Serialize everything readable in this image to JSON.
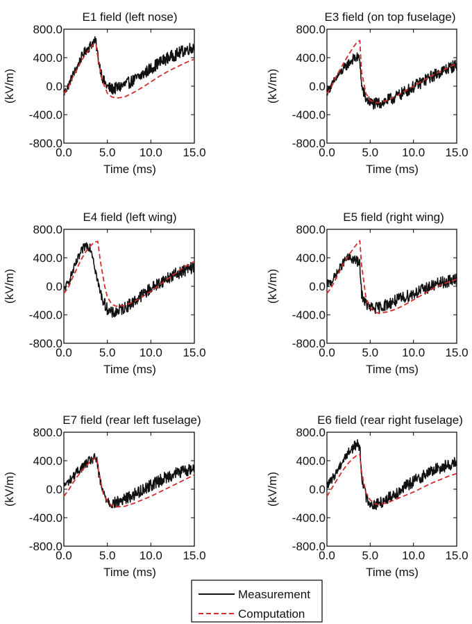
{
  "colors": {
    "measurement": "#111111",
    "computation": "#d42a2a",
    "axis": "#000000"
  },
  "legend": {
    "items": [
      "Measurement",
      "Computation"
    ],
    "position": "bottom-center"
  },
  "chart_data": [
    {
      "type": "line",
      "title": "E1 field (left nose)",
      "xlabel": "Time (ms)",
      "ylabel": "(kV/m)",
      "xlim": [
        0,
        15
      ],
      "ylim": [
        -800,
        800
      ],
      "xticks": [
        "0.0",
        "5.0",
        "10.0",
        "15.0"
      ],
      "yticks": [
        "800.0",
        "400.0",
        "0.0",
        "-400.0",
        "-800.0"
      ],
      "grid": false,
      "series": [
        {
          "name": "Measurement",
          "x": [
            0,
            0.5,
            1,
            1.5,
            2,
            2.5,
            3,
            3.5,
            3.7,
            4,
            4.5,
            5,
            5.5,
            6,
            7,
            8,
            9,
            10,
            11,
            12,
            13,
            14,
            15
          ],
          "y": [
            -100,
            0,
            150,
            260,
            400,
            500,
            560,
            640,
            600,
            350,
            90,
            -10,
            -40,
            -30,
            20,
            80,
            160,
            250,
            330,
            400,
            450,
            510,
            550
          ]
        },
        {
          "name": "Computation",
          "x": [
            0,
            0.5,
            1,
            1.5,
            2,
            2.5,
            3,
            3.5,
            3.7,
            4,
            4.5,
            5,
            5.5,
            6,
            7,
            8,
            9,
            10,
            11,
            12,
            13,
            14,
            15
          ],
          "y": [
            -100,
            -20,
            120,
            230,
            350,
            450,
            530,
            600,
            580,
            330,
            50,
            -100,
            -150,
            -170,
            -150,
            -90,
            -20,
            60,
            140,
            210,
            270,
            330,
            380
          ]
        }
      ]
    },
    {
      "type": "line",
      "title": "E3 field (on top fuselage)",
      "xlabel": "Time (ms)",
      "ylabel": "(kV/m)",
      "xlim": [
        0,
        15
      ],
      "ylim": [
        -800,
        800
      ],
      "xticks": [
        "0.0",
        "5.0",
        "10.0",
        "15.0"
      ],
      "yticks": [
        "800.0",
        "400.0",
        "0.0",
        "-400.0",
        "-800.0"
      ],
      "grid": false,
      "series": [
        {
          "name": "Measurement",
          "x": [
            0,
            0.5,
            1,
            1.5,
            2,
            2.5,
            3,
            3.5,
            3.8,
            4,
            4.5,
            5,
            5.5,
            6,
            7,
            8,
            9,
            10,
            11,
            12,
            13,
            14,
            15
          ],
          "y": [
            -80,
            0,
            100,
            180,
            250,
            320,
            380,
            400,
            380,
            0,
            -180,
            -230,
            -250,
            -240,
            -200,
            -150,
            -80,
            -10,
            60,
            130,
            190,
            250,
            300
          ]
        },
        {
          "name": "Computation",
          "x": [
            0,
            0.5,
            1,
            1.5,
            2,
            2.5,
            3,
            3.5,
            3.8,
            4,
            4.5,
            5,
            5.5,
            6,
            7,
            8,
            9,
            10,
            11,
            12,
            13,
            14,
            15
          ],
          "y": [
            -100,
            -20,
            120,
            230,
            340,
            440,
            540,
            620,
            640,
            200,
            -100,
            -200,
            -230,
            -230,
            -200,
            -140,
            -70,
            0,
            70,
            140,
            200,
            260,
            320
          ]
        }
      ]
    },
    {
      "type": "line",
      "title": "E4 field (left wing)",
      "xlabel": "Time (ms)",
      "ylabel": "(kV/m)",
      "xlim": [
        0,
        15
      ],
      "ylim": [
        -800,
        800
      ],
      "xticks": [
        "0.0",
        "5.0",
        "10.0",
        "15.0"
      ],
      "yticks": [
        "800.0",
        "400.0",
        "0.0",
        "-400.0",
        "-800.0"
      ],
      "grid": false,
      "series": [
        {
          "name": "Measurement",
          "x": [
            0,
            0.5,
            1,
            1.5,
            2,
            2.5,
            3,
            3.3,
            3.6,
            4,
            4.5,
            5,
            5.5,
            6,
            7,
            8,
            9,
            10,
            11,
            12,
            13,
            14,
            15
          ],
          "y": [
            -50,
            50,
            200,
            350,
            480,
            580,
            560,
            450,
            250,
            0,
            -200,
            -320,
            -380,
            -360,
            -300,
            -220,
            -120,
            -30,
            50,
            120,
            180,
            230,
            270
          ]
        },
        {
          "name": "Computation",
          "x": [
            0,
            0.5,
            1,
            1.5,
            2,
            2.5,
            3,
            3.5,
            3.9,
            4.2,
            4.7,
            5,
            5.5,
            6,
            7,
            8,
            9,
            10,
            11,
            12,
            13,
            14,
            15
          ],
          "y": [
            -100,
            -20,
            120,
            250,
            380,
            480,
            560,
            620,
            630,
            350,
            0,
            -150,
            -250,
            -280,
            -270,
            -220,
            -150,
            -70,
            20,
            110,
            200,
            280,
            350
          ]
        }
      ]
    },
    {
      "type": "line",
      "title": "E5 field (right wing)",
      "xlabel": "Time (ms)",
      "ylabel": "(kV/m)",
      "xlim": [
        0,
        15
      ],
      "ylim": [
        -800,
        800
      ],
      "xticks": [
        "0.0",
        "5.0",
        "10.0",
        "15.0"
      ],
      "yticks": [
        "800.0",
        "400.0",
        "0.0",
        "-400.0",
        "-800.0"
      ],
      "grid": false,
      "series": [
        {
          "name": "Measurement",
          "x": [
            0,
            0.5,
            1,
            1.5,
            2,
            2.5,
            3,
            3.5,
            3.8,
            4,
            4.5,
            5,
            5.5,
            6,
            7,
            8,
            9,
            10,
            11,
            12,
            13,
            14,
            15
          ],
          "y": [
            30,
            60,
            150,
            250,
            350,
            400,
            380,
            350,
            300,
            -100,
            -250,
            -300,
            -310,
            -300,
            -250,
            -200,
            -150,
            -100,
            -50,
            0,
            40,
            70,
            100
          ]
        },
        {
          "name": "Computation",
          "x": [
            0,
            0.5,
            1,
            1.5,
            2,
            2.5,
            3,
            3.5,
            3.8,
            4,
            4.5,
            5,
            5.5,
            6,
            7,
            8,
            9,
            10,
            11,
            12,
            13,
            14,
            15
          ],
          "y": [
            -100,
            -20,
            100,
            220,
            330,
            430,
            520,
            600,
            640,
            300,
            -150,
            -300,
            -360,
            -380,
            -360,
            -320,
            -260,
            -190,
            -120,
            -50,
            10,
            60,
            100
          ]
        }
      ]
    },
    {
      "type": "line",
      "title": "E7 field (rear left fuselage)",
      "xlabel": "Time (ms)",
      "ylabel": "(kV/m)",
      "xlim": [
        0,
        15
      ],
      "ylim": [
        -800,
        800
      ],
      "xticks": [
        "0.0",
        "5.0",
        "10.0",
        "15.0"
      ],
      "yticks": [
        "800.0",
        "400.0",
        "0.0",
        "-400.0",
        "-800.0"
      ],
      "grid": false,
      "series": [
        {
          "name": "Measurement",
          "x": [
            0,
            0.5,
            1,
            1.5,
            2,
            2.5,
            3,
            3.5,
            3.8,
            4,
            4.5,
            5,
            5.5,
            6,
            7,
            8,
            9,
            10,
            11,
            12,
            13,
            14,
            15
          ],
          "y": [
            50,
            100,
            170,
            240,
            300,
            350,
            400,
            430,
            420,
            200,
            -50,
            -150,
            -200,
            -190,
            -140,
            -80,
            -10,
            60,
            120,
            180,
            230,
            260,
            290
          ]
        },
        {
          "name": "Computation",
          "x": [
            0,
            0.5,
            1,
            1.5,
            2,
            2.5,
            3,
            3.5,
            3.8,
            4,
            4.5,
            5,
            5.5,
            6,
            7,
            8,
            9,
            10,
            11,
            12,
            13,
            14,
            15
          ],
          "y": [
            -100,
            -20,
            80,
            170,
            250,
            320,
            380,
            430,
            440,
            250,
            -50,
            -170,
            -230,
            -250,
            -240,
            -200,
            -150,
            -100,
            -40,
            20,
            80,
            140,
            200
          ]
        }
      ]
    },
    {
      "type": "line",
      "title": "E6 field (rear right fuselage)",
      "xlabel": "Time (ms)",
      "ylabel": "(kV/m)",
      "xlim": [
        0,
        15
      ],
      "ylim": [
        -800,
        800
      ],
      "xticks": [
        "0.0",
        "5.0",
        "10.0",
        "15.0"
      ],
      "yticks": [
        "800.0",
        "400.0",
        "0.0",
        "-400.0",
        "-800.0"
      ],
      "grid": false,
      "series": [
        {
          "name": "Measurement",
          "x": [
            0,
            0.5,
            1,
            1.5,
            2,
            2.5,
            3,
            3.5,
            3.8,
            4,
            4.5,
            5,
            5.5,
            6,
            7,
            8,
            9,
            10,
            11,
            12,
            13,
            14,
            15
          ],
          "y": [
            50,
            120,
            220,
            330,
            430,
            520,
            580,
            640,
            600,
            200,
            -100,
            -200,
            -220,
            -200,
            -130,
            -50,
            30,
            110,
            180,
            250,
            300,
            340,
            370
          ]
        },
        {
          "name": "Computation",
          "x": [
            0,
            0.5,
            1,
            1.5,
            2,
            2.5,
            3,
            3.5,
            3.8,
            4,
            4.5,
            5,
            5.5,
            6,
            7,
            8,
            9,
            10,
            11,
            12,
            13,
            14,
            15
          ],
          "y": [
            -100,
            0,
            100,
            200,
            290,
            370,
            430,
            480,
            490,
            250,
            -50,
            -150,
            -200,
            -220,
            -190,
            -140,
            -90,
            -40,
            20,
            80,
            130,
            180,
            220
          ]
        }
      ]
    }
  ]
}
